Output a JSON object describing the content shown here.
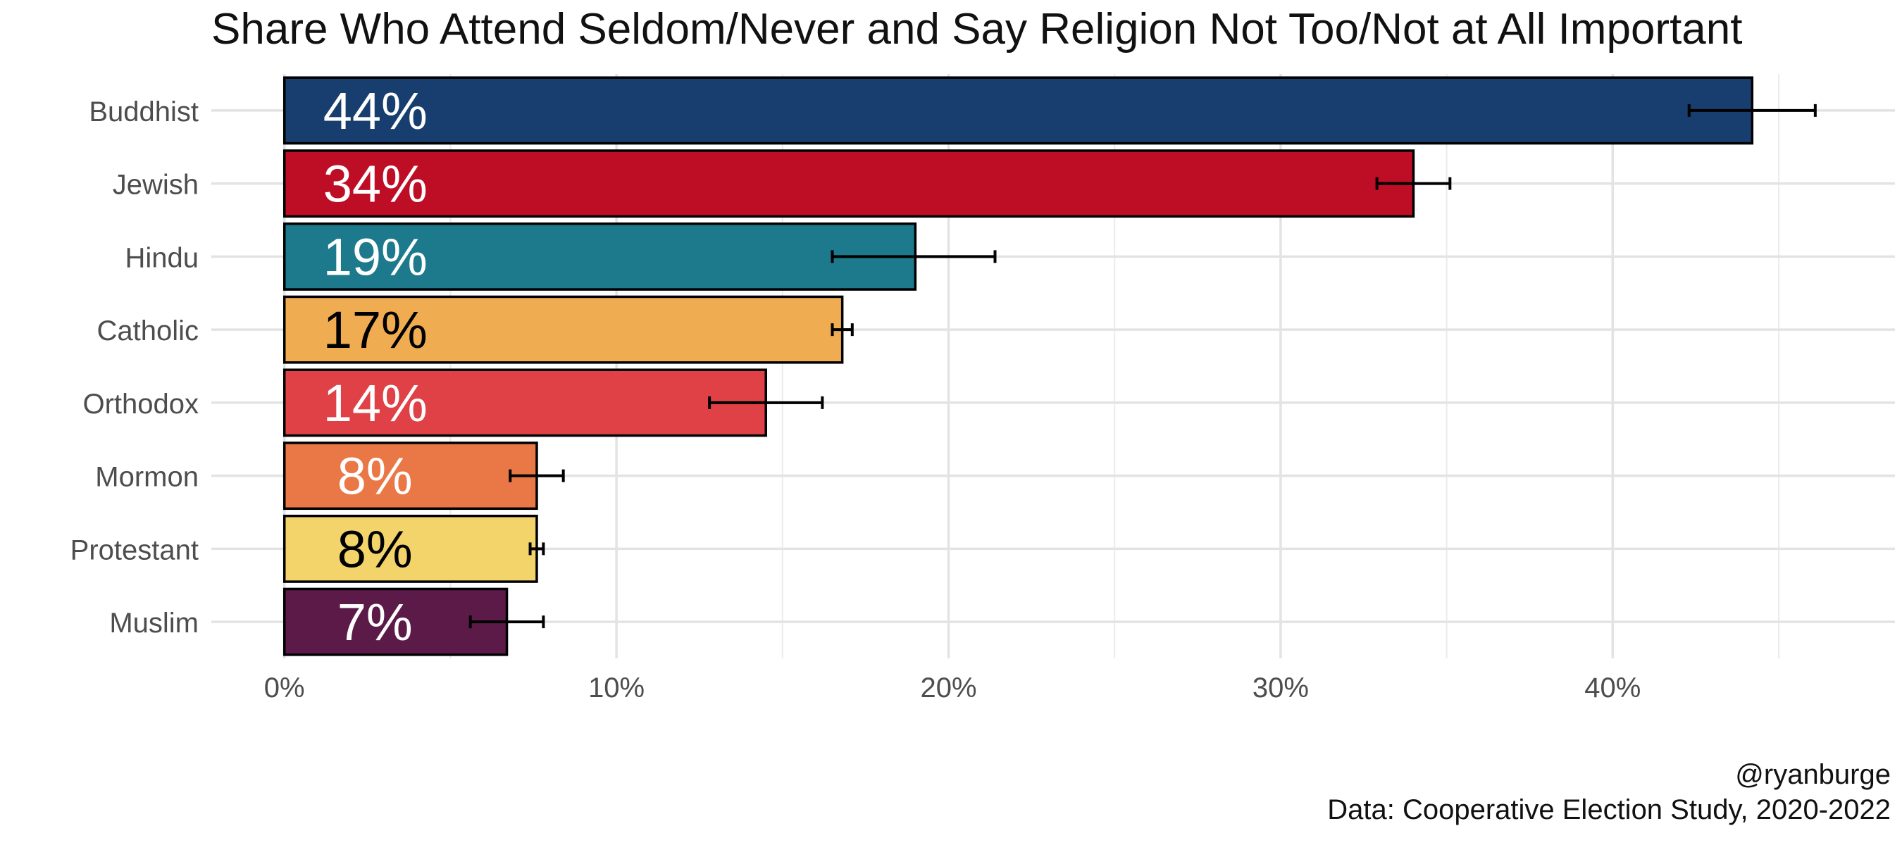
{
  "chart_data": {
    "type": "bar",
    "orientation": "horizontal",
    "title": "Share Who Attend Seldom/Never and Say Religion Not Too/Not at All Important",
    "xlabel": "",
    "ylabel": "",
    "categories": [
      "Buddhist",
      "Jewish",
      "Hindu",
      "Catholic",
      "Orthodox",
      "Mormon",
      "Protestant",
      "Muslim"
    ],
    "values": [
      44.2,
      34.0,
      19.0,
      16.8,
      14.5,
      7.6,
      7.6,
      6.7
    ],
    "value_labels": [
      "44%",
      "34%",
      "19%",
      "17%",
      "14%",
      "8%",
      "8%",
      "7%"
    ],
    "error_low": [
      42.3,
      32.9,
      16.5,
      16.5,
      12.8,
      6.8,
      7.4,
      5.6
    ],
    "error_high": [
      46.1,
      35.1,
      21.4,
      17.1,
      16.2,
      8.4,
      7.8,
      7.8
    ],
    "colors": [
      "#173E6F",
      "#BE0E26",
      "#1C7A8C",
      "#F0AC50",
      "#DF4146",
      "#EA7847",
      "#F2D46A",
      "#5B1A48"
    ],
    "label_colors": [
      "#ffffff",
      "#ffffff",
      "#ffffff",
      "#000000",
      "#ffffff",
      "#ffffff",
      "#000000",
      "#ffffff"
    ],
    "xlim": [
      -2.2,
      48.5
    ],
    "xticks": [
      0,
      10,
      20,
      30,
      40
    ],
    "xtick_labels": [
      "0%",
      "10%",
      "20%",
      "30%",
      "40%"
    ],
    "grid": true,
    "legend": "none"
  },
  "caption": {
    "handle": "@ryanburge",
    "source": "Data: Cooperative Election Study, 2020-2022"
  }
}
